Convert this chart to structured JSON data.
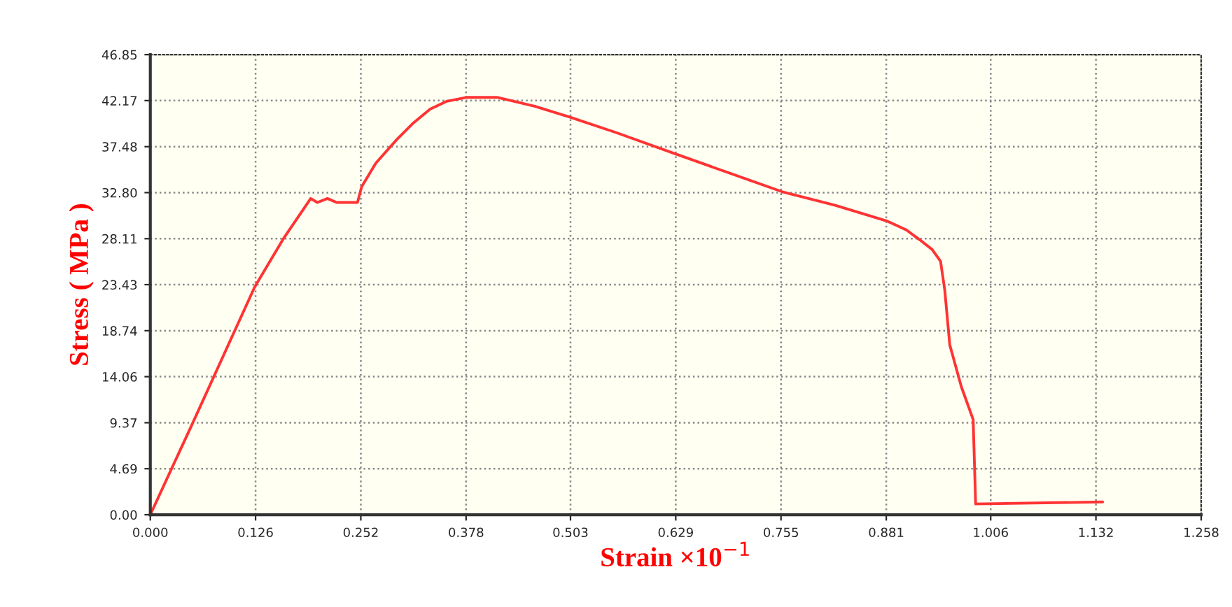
{
  "chart_data": {
    "type": "line",
    "xlabel": "Strain ×10$^{−1}$",
    "ylabel": "Stress ( MPa )",
    "xlim": [
      0,
      1.258
    ],
    "ylim": [
      0,
      46.85
    ],
    "xticks": [
      {
        "value": 0,
        "label": "0.000"
      },
      {
        "value": 0.126,
        "label": "0.126"
      },
      {
        "value": 0.252,
        "label": "0.252"
      },
      {
        "value": 0.378,
        "label": "0.378"
      },
      {
        "value": 0.503,
        "label": "0.503"
      },
      {
        "value": 0.629,
        "label": "0.629"
      },
      {
        "value": 0.755,
        "label": "0.755"
      },
      {
        "value": 0.881,
        "label": "0.881"
      },
      {
        "value": 1.006,
        "label": "1.006"
      },
      {
        "value": 1.132,
        "label": "1.132"
      },
      {
        "value": 1.258,
        "label": "1.258"
      }
    ],
    "yticks": [
      {
        "value": 0,
        "label": "0.00"
      },
      {
        "value": 4.69,
        "label": "4.69"
      },
      {
        "value": 9.37,
        "label": "9.37"
      },
      {
        "value": 14.06,
        "label": "14.06"
      },
      {
        "value": 18.74,
        "label": "18.74"
      },
      {
        "value": 23.43,
        "label": "23.43"
      },
      {
        "value": 28.11,
        "label": "28.11"
      },
      {
        "value": 32.8,
        "label": "32.80"
      },
      {
        "value": 37.48,
        "label": "37.48"
      },
      {
        "value": 42.17,
        "label": "42.17"
      },
      {
        "value": 46.85,
        "label": "46.85"
      }
    ],
    "grid": true,
    "marker": "none",
    "line_style": "solid",
    "series": [
      {
        "color": "#ff3333",
        "x": [
          0,
          0.05,
          0.125,
          0.16,
          0.192,
          0.2,
          0.212,
          0.223,
          0.248,
          0.253,
          0.27,
          0.295,
          0.315,
          0.335,
          0.355,
          0.379,
          0.415,
          0.46,
          0.502,
          0.558,
          0.63,
          0.756,
          0.82,
          0.882,
          0.905,
          0.921,
          0.936,
          0.946,
          0.951,
          0.957,
          0.971,
          0.985,
          0.988,
          1.14
        ],
        "values": [
          0,
          9.2,
          23.2,
          28.2,
          32.2,
          31.8,
          32.2,
          31.8,
          31.8,
          33.4,
          35.8,
          38.2,
          39.9,
          41.3,
          42.1,
          42.5,
          42.5,
          41.6,
          40.5,
          38.9,
          36.7,
          32.9,
          31.5,
          29.9,
          29.0,
          28.0,
          27.0,
          25.8,
          22.9,
          17.3,
          13.0,
          9.7,
          1.1,
          1.3
        ]
      }
    ]
  }
}
